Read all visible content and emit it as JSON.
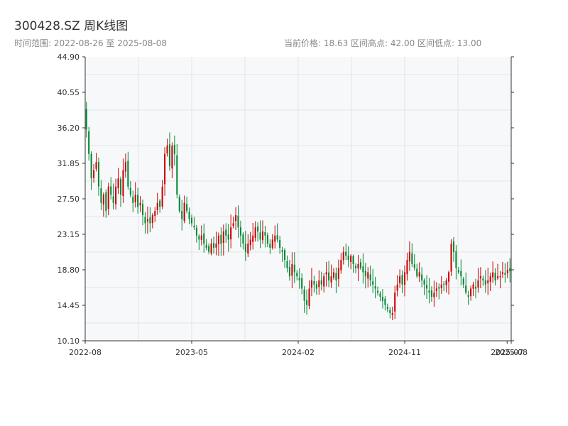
{
  "header": {
    "title": "300428.SZ 周K线图",
    "date_range": "时间范围: 2022-08-26 至 2025-08-08",
    "stats": "当前价格: 18.63   区间高点: 42.00   区间低点: 13.00"
  },
  "colors": {
    "up": "#cc0000",
    "down": "#008833",
    "plot_bg": "#f7f8fa",
    "grid": "#e3e4e8",
    "axis": "#333333"
  },
  "chart_data": {
    "type": "candlestick",
    "title": "300428.SZ 周K线图",
    "xlabel": "",
    "ylabel": "",
    "ylim": [
      10.1,
      44.9
    ],
    "yticks": [
      "44.90",
      "40.55",
      "36.20",
      "31.85",
      "27.50",
      "23.15",
      "18.80",
      "14.45",
      "10.10"
    ],
    "xticks": [
      "2022-08",
      "2023-05",
      "2024-02",
      "2024-11",
      "2025-07",
      "2025-08"
    ],
    "grid": true,
    "date_start": "2022-08-26",
    "date_end": "2025-08-08",
    "current_price": 18.63,
    "period_high": 42.0,
    "period_low": 13.0,
    "series": [
      {
        "name": "",
        "close_weekly": [
          36,
          33,
          30,
          31,
          32,
          29,
          27,
          28,
          26,
          29,
          28,
          27,
          29,
          30,
          28,
          31,
          32,
          29,
          28,
          27,
          28,
          26.5,
          27,
          25.5,
          24.5,
          25,
          24.5,
          25.5,
          26,
          27,
          26.5,
          29,
          33,
          34,
          31.5,
          34,
          33,
          28,
          26,
          25,
          27,
          26,
          25,
          24.5,
          24,
          23,
          22.5,
          23,
          22,
          21.5,
          21,
          22,
          21.5,
          22,
          23,
          22,
          23.5,
          23,
          22.5,
          24,
          24.5,
          25.5,
          24,
          23,
          22,
          21,
          22,
          22.5,
          23,
          24,
          23.5,
          22.5,
          23.5,
          23,
          22,
          21.5,
          22.5,
          23,
          22.5,
          21.5,
          21,
          20,
          19,
          18,
          19.5,
          18.5,
          18,
          17.5,
          16.5,
          15,
          14.5,
          16.5,
          17.5,
          17,
          16.5,
          17.5,
          17,
          18,
          18.5,
          17.5,
          18,
          18.5,
          17.5,
          19,
          20,
          21,
          20.5,
          20,
          20.5,
          19.5,
          19,
          19.5,
          19,
          18.5,
          18,
          18.5,
          17.5,
          17,
          16.5,
          16,
          15.5,
          15,
          14.5,
          14,
          13.5,
          13.5,
          16,
          17,
          18,
          17,
          18.5,
          20,
          21,
          19.5,
          19,
          18,
          18.5,
          17.5,
          17,
          16.5,
          16,
          15.5,
          16,
          16.5,
          16.5,
          17,
          17,
          17.5,
          18.5,
          22,
          21,
          19,
          18.5,
          18,
          17,
          16,
          15.5,
          16.5,
          17,
          16.5,
          17.5,
          18,
          17.5,
          17,
          17.5,
          18,
          18.5,
          17.5,
          18,
          18,
          18.5,
          18.2,
          18.8,
          18.63
        ]
      }
    ]
  }
}
